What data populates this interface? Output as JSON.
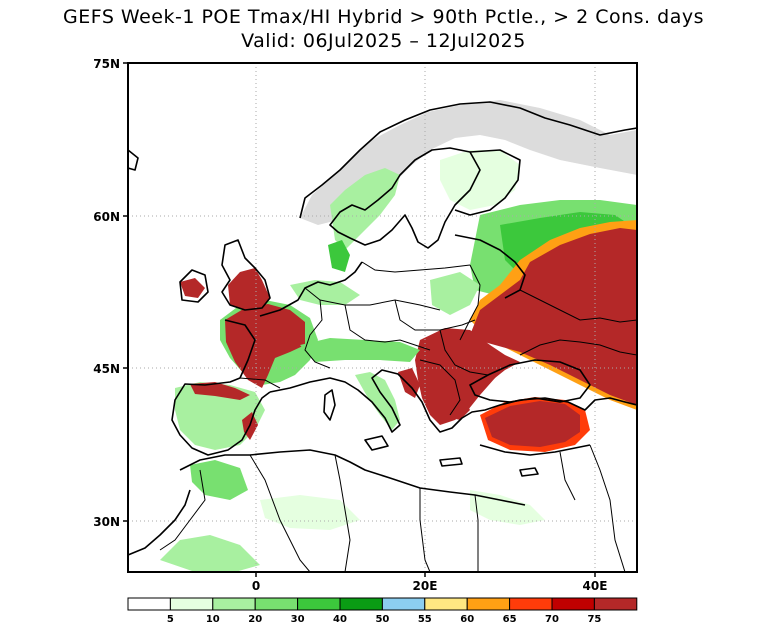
{
  "title": {
    "line1": "GEFS Week-1 POE Tmax/HI Hybrid > 90th Pctle., > 2 Cons. days",
    "line2": "Valid: 06Jul2025 – 12Jul2025"
  },
  "axes": {
    "lat_labels": [
      "75N",
      "60N",
      "45N",
      "30N"
    ],
    "lon_labels": [
      "0",
      "20E",
      "40E"
    ]
  },
  "legend": {
    "labels": [
      "5",
      "10",
      "20",
      "30",
      "40",
      "50",
      "55",
      "60",
      "65",
      "70",
      "75"
    ],
    "colors": [
      "#ffffff",
      "#e5ffe0",
      "#a8f0a0",
      "#78e070",
      "#3cc83c",
      "#0a9c14",
      "#8ccef0",
      "#ffe882",
      "#ffa014",
      "#ff3c0a",
      "#c00000",
      "#b42828"
    ]
  },
  "map": {
    "region": "Europe",
    "colors": {
      "no_data": "#dcdcdc",
      "grid": "#aaaaaa",
      "coast": "#000000"
    }
  }
}
